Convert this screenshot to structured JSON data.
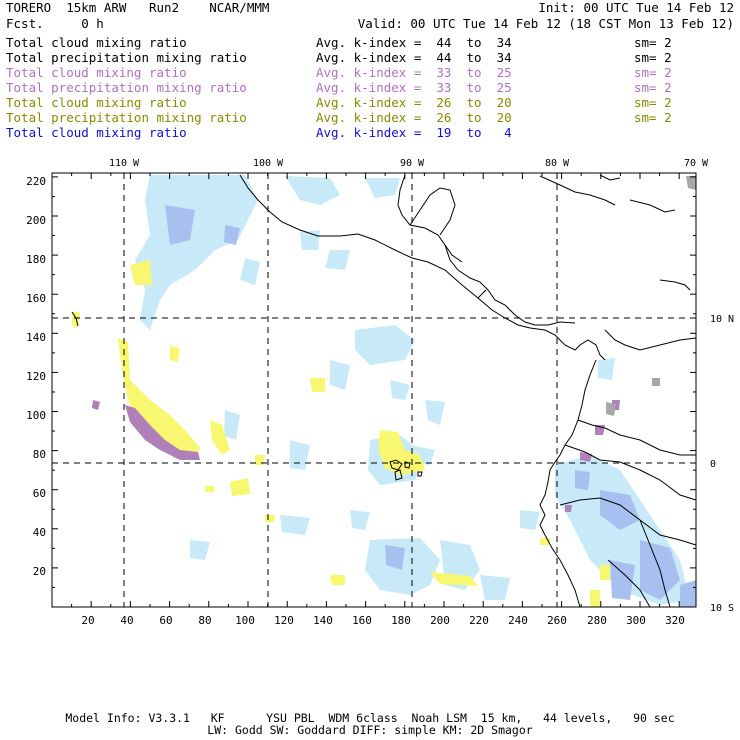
{
  "header": {
    "left_line1": "TORERO  15km ARW   Run2    NCAR/MMM",
    "left_line2": "Fcst.     0 h",
    "init": "Init: 00 UTC Tue 14 Feb 12",
    "valid": "Valid: 00 UTC Tue 14 Feb 12 (18 CST Mon 13 Feb 12)"
  },
  "legend": [
    {
      "field": "Total cloud mixing ratio",
      "kindex": "Avg. k-index =  44  to  34",
      "sm": "sm= 2",
      "color": "#000000"
    },
    {
      "field": "Total precipitation mixing ratio",
      "kindex": "Avg. k-index =  44  to  34",
      "sm": "sm= 2",
      "color": "#000000"
    },
    {
      "field": "Total cloud mixing ratio",
      "kindex": "Avg. k-index =  33  to  25",
      "sm": "sm= 2",
      "color": "#b070c0"
    },
    {
      "field": "Total precipitation mixing ratio",
      "kindex": "Avg. k-index =  33  to  25",
      "sm": "sm= 2",
      "color": "#b070c0"
    },
    {
      "field": "Total cloud mixing ratio",
      "kindex": "Avg. k-index =  26  to  20",
      "sm": "sm= 2",
      "color": "#8a8a00"
    },
    {
      "field": "Total precipitation mixing ratio",
      "kindex": "Avg. k-index =  26  to  20",
      "sm": "sm= 2",
      "color": "#8a8a00"
    },
    {
      "field": "Total cloud mixing ratio",
      "kindex": "Avg. k-index =  19  to   4",
      "sm": "",
      "color": "#1010d0"
    }
  ],
  "map": {
    "lon_labels": [
      "110 W",
      "100 W",
      "90 W",
      "80 W",
      "70 W"
    ],
    "lat_labels": [
      "10 N",
      "0",
      "10 S"
    ],
    "y_ticks": [
      "220",
      "200",
      "180",
      "160",
      "140",
      "120",
      "100",
      "80",
      "60",
      "40",
      "20"
    ],
    "x_ticks": [
      "20",
      "40",
      "60",
      "80",
      "100",
      "120",
      "140",
      "160",
      "180",
      "200",
      "220",
      "240",
      "260",
      "280",
      "300",
      "320"
    ]
  },
  "footer": {
    "line1": "Model Info: V3.3.1   KF      YSU PBL  WDM 6class  Noah LSM  15 km,   44 levels,   90 sec",
    "line2": "LW: Godd SW: Goddard DIFF: simple KM: 2D Smagor"
  },
  "colors": {
    "light_blue": "#c8eaf8",
    "blue": "#a8c0f0",
    "yellow": "#f8f870",
    "purple": "#b080b8",
    "gray": "#a8a8a8"
  }
}
